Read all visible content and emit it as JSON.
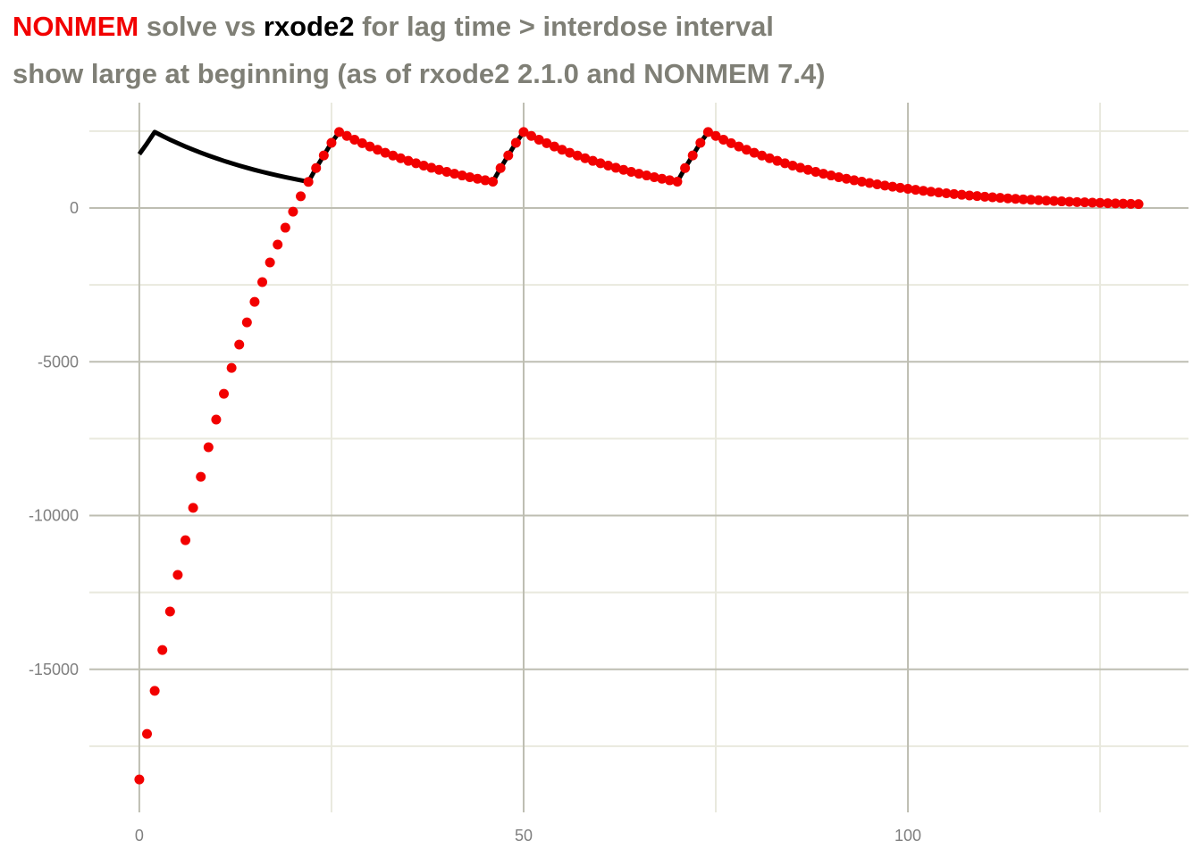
{
  "chart_data": {
    "type": "line_scatter",
    "title": [
      {
        "text": "NONMEM",
        "color": "#f20000"
      },
      {
        "text": " solve vs ",
        "color": "#7f7f76"
      },
      {
        "text": "rxode2",
        "color": "#000000"
      },
      {
        "text": " for lag time > interdose interval",
        "color": "#7f7f76"
      }
    ],
    "subtitle": "show large at beginning (as of rxode2 2.1.0 and NONMEM 7.4)",
    "xlim": [
      -6.5,
      136.5
    ],
    "ylim": [
      -19650,
      3425
    ],
    "xticks": [
      0,
      50,
      100
    ],
    "yticks": [
      0,
      -5000,
      -10000,
      -15000
    ],
    "x_minor_grid": [
      25,
      75,
      125
    ],
    "y_minor_grid": [
      2500,
      -2500,
      -7500,
      -12500,
      -17500
    ],
    "grid": true,
    "x": [
      0,
      1,
      2,
      3,
      4,
      5,
      6,
      7,
      8,
      9,
      10,
      11,
      12,
      13,
      14,
      15,
      16,
      17,
      18,
      19,
      20,
      21,
      22,
      23,
      24,
      25,
      26,
      27,
      28,
      29,
      30,
      31,
      32,
      33,
      34,
      35,
      36,
      37,
      38,
      39,
      40,
      41,
      42,
      43,
      44,
      45,
      46,
      47,
      48,
      49,
      50,
      51,
      52,
      53,
      54,
      55,
      56,
      57,
      58,
      59,
      60,
      61,
      62,
      63,
      64,
      65,
      66,
      67,
      68,
      69,
      70,
      71,
      72,
      73,
      74,
      75,
      76,
      77,
      78,
      79,
      80,
      81,
      82,
      83,
      84,
      85,
      86,
      87,
      88,
      89,
      90,
      91,
      92,
      93,
      94,
      95,
      96,
      97,
      98,
      99,
      100,
      101,
      102,
      103,
      104,
      105,
      106,
      107,
      108,
      109,
      110,
      111,
      112,
      113,
      114,
      115,
      116,
      117,
      118,
      119,
      120,
      121,
      122,
      123,
      124,
      125,
      126,
      127,
      128,
      129,
      130
    ],
    "series": [
      {
        "name": "rxode2",
        "kind": "line",
        "color": "#000000",
        "values": [
          1750,
          2100,
          2470,
          2343,
          2222,
          2107,
          1998,
          1895,
          1797,
          1705,
          1617,
          1533,
          1454,
          1379,
          1308,
          1240,
          1176,
          1115,
          1058,
          1003,
          951,
          902,
          850,
          1300,
          1710,
          2120,
          2470,
          2343,
          2222,
          2107,
          1998,
          1895,
          1797,
          1705,
          1617,
          1533,
          1454,
          1379,
          1308,
          1240,
          1176,
          1115,
          1058,
          1003,
          951,
          902,
          856,
          1300,
          1710,
          2120,
          2470,
          2343,
          2222,
          2107,
          1998,
          1895,
          1797,
          1705,
          1617,
          1533,
          1454,
          1379,
          1308,
          1240,
          1176,
          1115,
          1058,
          1003,
          951,
          902,
          856,
          1300,
          1710,
          2120,
          2470,
          2343,
          2222,
          2107,
          1998,
          1895,
          1797,
          1705,
          1617,
          1533,
          1454,
          1379,
          1308,
          1240,
          1176,
          1115,
          1058,
          1003,
          951,
          902,
          856,
          812,
          770,
          730,
          692,
          657,
          623,
          591,
          560,
          531,
          504,
          478,
          453,
          430,
          408,
          387,
          367,
          348,
          330,
          313,
          297,
          281,
          267,
          253,
          240,
          228,
          216,
          205,
          194,
          184,
          175,
          166,
          157,
          149,
          141,
          134,
          127
        ]
      },
      {
        "name": "NONMEM",
        "kind": "points",
        "color": "#f20000",
        "values": [
          -18580,
          -17100,
          -15700,
          -14370,
          -13120,
          -11930,
          -10800,
          -9750,
          -8740,
          -7780,
          -6880,
          -6040,
          -5200,
          -4440,
          -3720,
          -3050,
          -2410,
          -1770,
          -1190,
          -640,
          -120,
          380,
          850,
          1300,
          1710,
          2120,
          2470,
          2343,
          2222,
          2107,
          1998,
          1895,
          1797,
          1705,
          1617,
          1533,
          1454,
          1379,
          1308,
          1240,
          1176,
          1115,
          1058,
          1003,
          951,
          902,
          856,
          1300,
          1710,
          2120,
          2470,
          2343,
          2222,
          2107,
          1998,
          1895,
          1797,
          1705,
          1617,
          1533,
          1454,
          1379,
          1308,
          1240,
          1176,
          1115,
          1058,
          1003,
          951,
          902,
          856,
          1300,
          1710,
          2120,
          2470,
          2343,
          2222,
          2107,
          1998,
          1895,
          1797,
          1705,
          1617,
          1533,
          1454,
          1379,
          1308,
          1240,
          1176,
          1115,
          1058,
          1003,
          951,
          902,
          856,
          812,
          770,
          730,
          692,
          657,
          623,
          591,
          560,
          531,
          504,
          478,
          453,
          430,
          408,
          387,
          367,
          348,
          330,
          313,
          297,
          281,
          267,
          253,
          240,
          228,
          216,
          205,
          194,
          184,
          175,
          166,
          157,
          149,
          141,
          134,
          127
        ]
      }
    ]
  }
}
